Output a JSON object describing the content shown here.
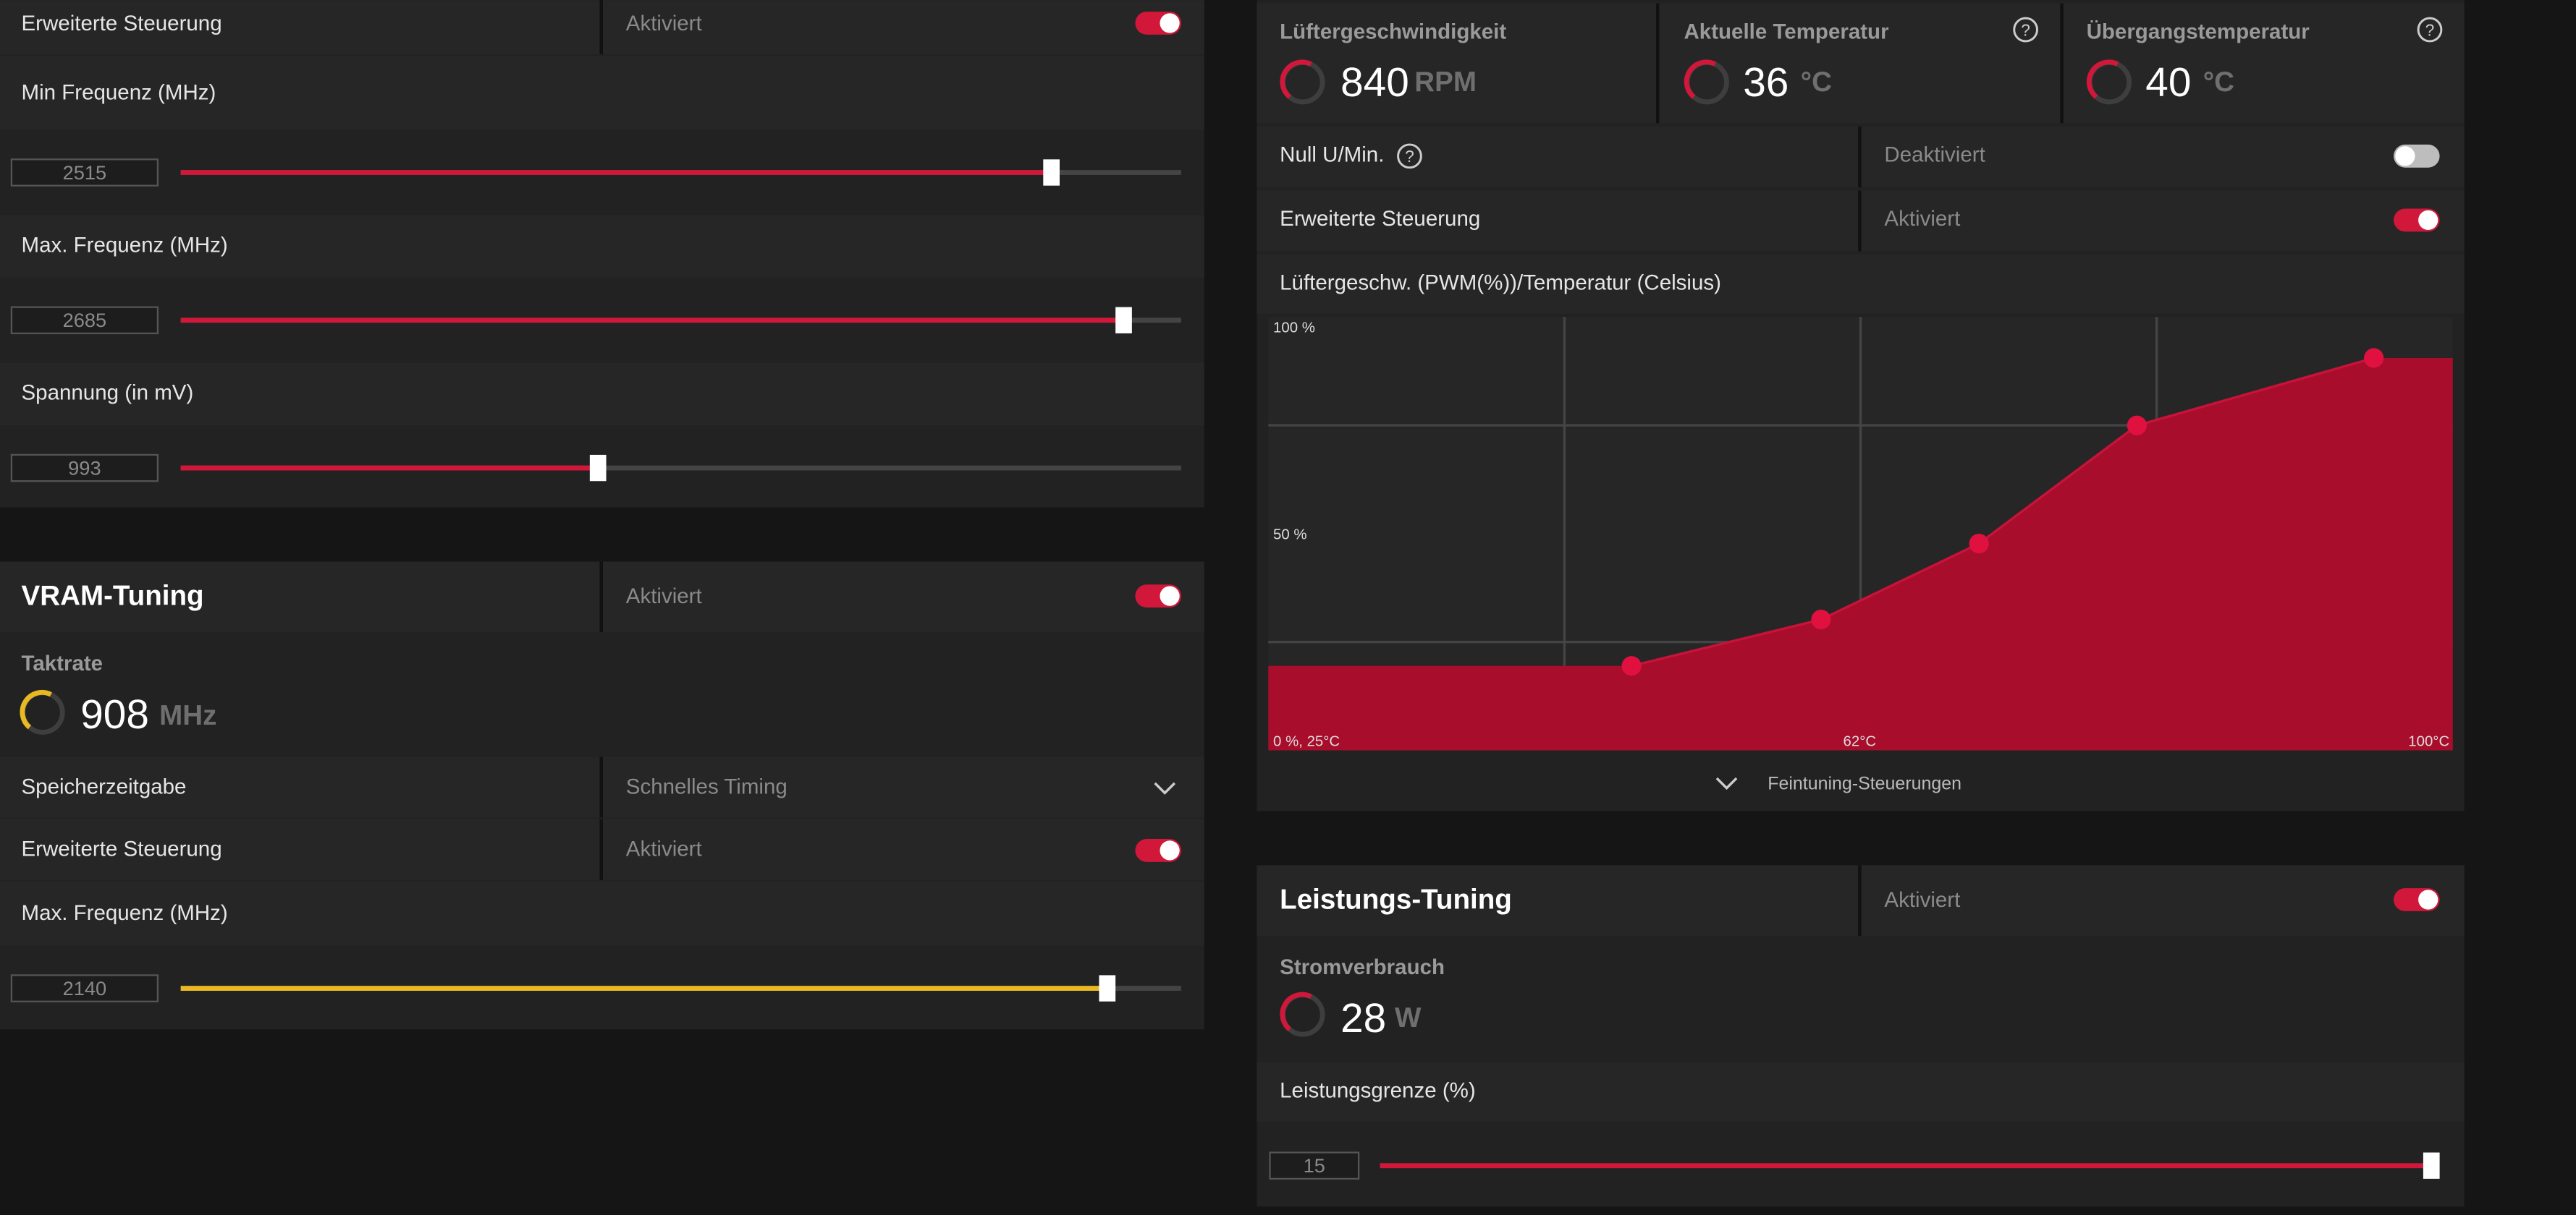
{
  "gpu_tuning": {
    "advanced_control": {
      "label": "Erweiterte Steuerung",
      "state": "Aktiviert"
    },
    "min_freq": {
      "label": "Min Frequenz (MHz)",
      "value": 2515
    },
    "max_freq": {
      "label": "Max. Frequenz (MHz)",
      "value": 2685
    },
    "voltage": {
      "label": "Spannung (in mV)",
      "value": 993
    }
  },
  "vram_tuning": {
    "title": "VRAM-Tuning",
    "state": "Aktiviert",
    "clock": {
      "label": "Taktrate",
      "value": 908,
      "unit": "MHz"
    },
    "memory_timing": {
      "label": "Speicherzeitgabe",
      "value": "Schnelles Timing"
    },
    "advanced_control": {
      "label": "Erweiterte Steuerung",
      "state": "Aktiviert"
    },
    "max_freq": {
      "label": "Max. Frequenz (MHz)",
      "value": 2140
    }
  },
  "fan_tuning": {
    "stats": [
      {
        "label": "Lüftergeschwindigkeit",
        "value": 840,
        "unit": "RPM"
      },
      {
        "label": "Aktuelle Temperatur",
        "value": 36,
        "unit": "°C"
      },
      {
        "label": "Übergangstemperatur",
        "value": 40,
        "unit": "°C"
      }
    ],
    "zero_rpm": {
      "label": "Null U/Min.",
      "state": "Deaktiviert"
    },
    "advanced_control": {
      "label": "Erweiterte Steuerung",
      "state": "Aktiviert"
    },
    "curve": {
      "title": "Lüftergeschw. (PWM(%))/Temperatur (Celsius)",
      "y_top_label": "100 %",
      "y_mid_label": "50 %",
      "origin_label": "0 %, 25°C",
      "x_mid_label": "62°C",
      "x_end_label": "100°C",
      "xlim": [
        25,
        100
      ],
      "ylim": [
        0,
        100
      ],
      "temps": [
        48,
        60,
        70,
        80,
        95
      ],
      "pwm": [
        20,
        31,
        49,
        77,
        93
      ]
    },
    "fine_tuning": "Feintuning-Steuerungen"
  },
  "power_tuning": {
    "title": "Leistungs-Tuning",
    "state": "Aktiviert",
    "power": {
      "label": "Stromverbrauch",
      "value": 28,
      "unit": "W"
    },
    "power_limit": {
      "label": "Leistungsgrenze (%)",
      "value": 15
    }
  }
}
